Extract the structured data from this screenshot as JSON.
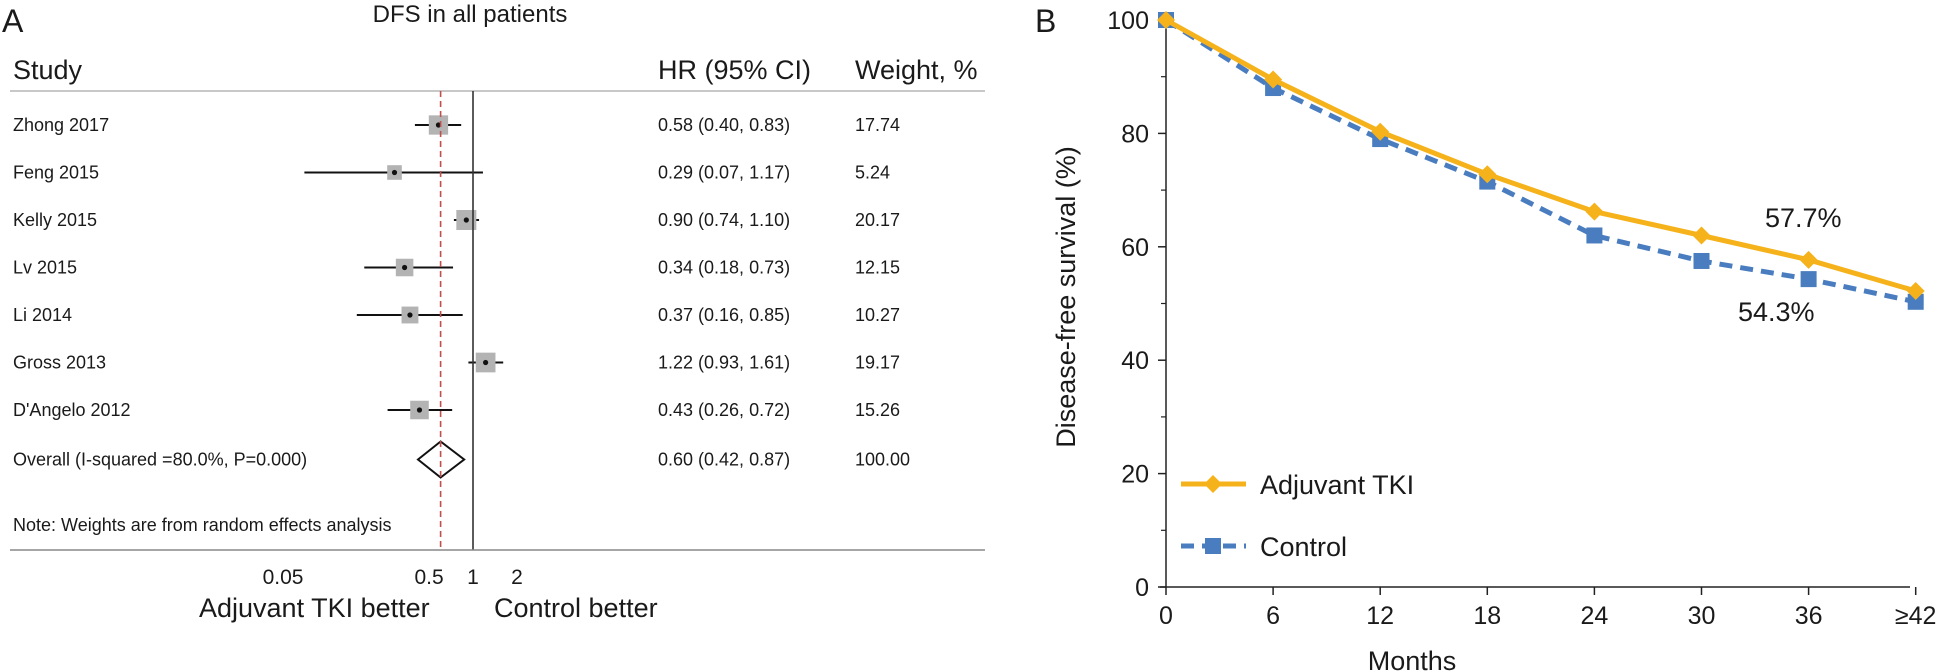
{
  "panel_a": {
    "label": "A",
    "chart_data": {
      "type": "forest",
      "title": "DFS in all patients",
      "columns": {
        "study": "Study",
        "hr": "HR (95% CI)",
        "weight": "Weight, %"
      },
      "studies": [
        {
          "name": "Zhong 2017",
          "hr": 0.58,
          "lower": 0.4,
          "upper": 0.83,
          "hr_text": "0.58 (0.40, 0.83)",
          "weight": "17.74"
        },
        {
          "name": "Feng 2015",
          "hr": 0.29,
          "lower": 0.07,
          "upper": 1.17,
          "hr_text": "0.29 (0.07, 1.17)",
          "weight": "5.24"
        },
        {
          "name": "Kelly 2015",
          "hr": 0.9,
          "lower": 0.74,
          "upper": 1.1,
          "hr_text": "0.90 (0.74, 1.10)",
          "weight": "20.17"
        },
        {
          "name": "Lv 2015",
          "hr": 0.34,
          "lower": 0.18,
          "upper": 0.73,
          "hr_text": "0.34 (0.18, 0.73)",
          "weight": "12.15"
        },
        {
          "name": "Li 2014",
          "hr": 0.37,
          "lower": 0.16,
          "upper": 0.85,
          "hr_text": "0.37 (0.16, 0.85)",
          "weight": "10.27"
        },
        {
          "name": "Gross 2013",
          "hr": 1.22,
          "lower": 0.93,
          "upper": 1.61,
          "hr_text": "1.22 (0.93, 1.61)",
          "weight": "19.17"
        },
        {
          "name": "D'Angelo 2012",
          "hr": 0.43,
          "lower": 0.26,
          "upper": 0.72,
          "hr_text": "0.43 (0.26, 0.72)",
          "weight": "15.26"
        }
      ],
      "overall": {
        "name": "Overall (I-squared =80.0%, P=0.000)",
        "hr": 0.6,
        "lower": 0.42,
        "upper": 0.87,
        "hr_text": "0.60 (0.42, 0.87)",
        "weight": "100.00"
      },
      "note": "Note: Weights are from random effects analysis",
      "x_scale": "log",
      "x_ticks": [
        {
          "value": 0.05,
          "label": "0.05"
        },
        {
          "value": 0.5,
          "label": "0.5"
        },
        {
          "value": 1,
          "label": "1"
        },
        {
          "value": 2,
          "label": "2"
        }
      ],
      "left_label": "Adjuvant TKI better",
      "right_label": "Control better"
    }
  },
  "panel_b": {
    "label": "B",
    "chart_data": {
      "type": "line",
      "xlabel": "Months",
      "ylabel": "Disease-free survival (%)",
      "categories": [
        "0",
        "6",
        "12",
        "18",
        "24",
        "30",
        "36",
        "≥42"
      ],
      "ylim": [
        0,
        100
      ],
      "yticks": [
        0,
        20,
        40,
        60,
        80,
        100
      ],
      "series": [
        {
          "name": "Adjuvant TKI",
          "color": "#f5b21b",
          "marker": "diamond",
          "dash": "solid",
          "values": [
            100,
            89.5,
            80.3,
            72.8,
            66.2,
            62.0,
            57.7,
            52.2
          ]
        },
        {
          "name": "Control",
          "color": "#4a7dbf",
          "marker": "square",
          "dash": "dashed",
          "values": [
            100,
            88.0,
            79.0,
            71.5,
            62.0,
            57.5,
            54.3,
            50.3
          ]
        }
      ],
      "annotations": [
        {
          "text": "57.7%",
          "series": "Adjuvant TKI"
        },
        {
          "text": "54.3%",
          "series": "Control"
        }
      ],
      "legend_position": "bottom-left"
    }
  }
}
